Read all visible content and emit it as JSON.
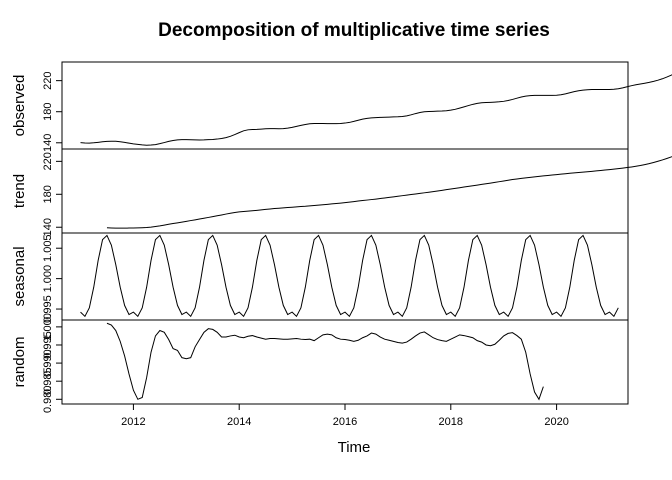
{
  "chart_data": {
    "type": "line",
    "title": "Decomposition of multiplicative time series",
    "xlabel": "Time",
    "xlim": [
      2010.65,
      2021.35
    ],
    "x_ticks": [
      "2012",
      "2014",
      "2016",
      "2018",
      "2020"
    ],
    "x_tick_values": [
      2012,
      2014,
      2016,
      2018,
      2020
    ],
    "start": 2011.0,
    "frequency": 12,
    "panels": [
      {
        "name": "observed",
        "ylabel": "observed",
        "ylim": [
          132,
          244
        ],
        "ticks": [
          "140",
          "180",
          "220"
        ],
        "tick_values": [
          140,
          180,
          220
        ],
        "values": [
          140.2,
          139.7,
          139.6,
          140.0,
          140.6,
          141.3,
          141.8,
          142.0,
          141.9,
          141.4,
          140.5,
          139.5,
          138.6,
          137.9,
          137.3,
          136.9,
          137.1,
          137.7,
          138.9,
          140.3,
          141.8,
          143.0,
          143.7,
          144.0,
          144.0,
          143.9,
          143.7,
          143.6,
          143.7,
          144.0,
          144.3,
          144.8,
          145.5,
          146.6,
          148.3,
          150.6,
          153.1,
          155.4,
          156.7,
          157.1,
          157.2,
          157.6,
          158.1,
          158.3,
          158.2,
          158.1,
          158.2,
          158.8,
          159.8,
          161.1,
          162.4,
          163.6,
          164.5,
          164.9,
          164.9,
          164.8,
          164.7,
          164.6,
          164.7,
          164.9,
          165.4,
          166.2,
          167.5,
          169.0,
          170.4,
          171.4,
          172.0,
          172.4,
          172.7,
          172.9,
          173.1,
          173.3,
          173.5,
          173.9,
          174.7,
          176.0,
          177.6,
          179.0,
          179.9,
          180.3,
          180.5,
          180.7,
          180.9,
          181.3,
          182.0,
          183.1,
          184.6,
          186.2,
          187.9,
          189.5,
          190.7,
          191.5,
          191.9,
          192.1,
          192.4,
          192.8,
          193.4,
          194.4,
          195.8,
          197.4,
          199.0,
          200.1,
          200.7,
          201.0,
          201.1,
          201.1,
          201.0,
          201.0,
          201.2,
          201.8,
          203.0,
          204.4,
          205.8,
          207.0,
          207.8,
          208.3,
          208.6,
          208.6,
          208.6,
          208.6,
          208.6,
          208.9,
          209.6,
          210.7,
          212.1,
          213.5,
          214.7,
          215.7,
          216.7,
          217.8,
          219.1,
          220.6,
          222.4,
          224.6,
          227.0,
          229.7,
          232.6,
          235.7,
          239.0,
          242.5
        ]
      },
      {
        "name": "trend",
        "ylabel": "trend",
        "ylim": [
          133,
          235
        ],
        "ticks": [
          "140",
          "180",
          "220"
        ],
        "tick_values": [
          140,
          180,
          220
        ],
        "values": [
          null,
          null,
          null,
          null,
          null,
          null,
          139.3,
          139.1,
          138.9,
          138.9,
          138.9,
          139.0,
          139.1,
          139.2,
          139.4,
          139.7,
          140.2,
          140.9,
          141.7,
          142.6,
          143.6,
          144.5,
          145.3,
          146.2,
          147.1,
          148.1,
          149.0,
          150.0,
          150.9,
          151.9,
          152.9,
          153.9,
          154.9,
          156.0,
          157.0,
          157.9,
          158.6,
          159.1,
          159.6,
          160.0,
          160.5,
          161.1,
          161.7,
          162.2,
          162.7,
          163.1,
          163.5,
          163.9,
          164.3,
          164.7,
          165.1,
          165.5,
          166.0,
          166.4,
          166.9,
          167.3,
          167.8,
          168.3,
          168.8,
          169.3,
          169.9,
          170.5,
          171.1,
          171.8,
          172.4,
          173.0,
          173.6,
          174.2,
          174.9,
          175.5,
          176.2,
          176.9,
          177.6,
          178.3,
          179.0,
          179.7,
          180.4,
          181.1,
          181.8,
          182.5,
          183.2,
          184.0,
          184.8,
          185.6,
          186.4,
          187.2,
          188.0,
          188.8,
          189.6,
          190.4,
          191.2,
          192.0,
          192.8,
          193.6,
          194.5,
          195.3,
          196.2,
          197.0,
          197.9,
          198.6,
          199.3,
          199.9,
          200.5,
          201.1,
          201.7,
          202.3,
          202.8,
          203.4,
          203.9,
          204.5,
          205.0,
          205.5,
          206.0,
          206.5,
          206.9,
          207.4,
          207.9,
          208.4,
          208.9,
          209.5,
          210.0,
          210.6,
          211.2,
          211.8,
          212.5,
          213.2,
          214.0,
          214.9,
          216.0,
          217.2,
          218.6,
          220.1,
          221.7,
          223.5,
          225.4,
          227.4,
          229.6,
          null,
          null,
          null,
          null,
          null,
          null
        ]
      },
      {
        "name": "seasonal",
        "ylabel": "seasonal",
        "ylim": [
          0.9932,
          1.0075
        ],
        "ticks": [
          "0.995",
          "1.000",
          "1.005"
        ],
        "tick_values": [
          0.995,
          1.0,
          1.005
        ],
        "values": [
          0.9945,
          0.9938,
          0.9952,
          0.9986,
          1.003,
          1.0064,
          1.0071,
          1.0055,
          1.0023,
          0.9986,
          0.9956,
          0.9941
        ]
      },
      {
        "name": "random",
        "ylabel": "random",
        "ylim": [
          0.9787,
          1.0019
        ],
        "ticks": [
          "0.980",
          "0.985",
          "0.990",
          "0.995",
          "1.000"
        ],
        "tick_values": [
          0.98,
          0.985,
          0.99,
          0.995,
          1.0
        ],
        "values": [
          null,
          null,
          null,
          null,
          null,
          null,
          1.001,
          1.0005,
          0.999,
          0.996,
          0.992,
          0.987,
          0.9825,
          0.98,
          0.9805,
          0.986,
          0.993,
          0.9975,
          0.999,
          0.9985,
          0.9965,
          0.994,
          0.9935,
          0.9915,
          0.9912,
          0.9915,
          0.9945,
          0.9965,
          0.9985,
          0.9995,
          0.9993,
          0.9985,
          0.9972,
          0.9972,
          0.9975,
          0.9977,
          0.9972,
          0.997,
          0.9974,
          0.9976,
          0.9972,
          0.9969,
          0.9966,
          0.9968,
          0.9968,
          0.9967,
          0.9966,
          0.9966,
          0.9967,
          0.9968,
          0.9966,
          0.9965,
          0.9966,
          0.9962,
          0.997,
          0.9978,
          0.998,
          0.9978,
          0.997,
          0.9966,
          0.9965,
          0.9963,
          0.996,
          0.9963,
          0.997,
          0.9975,
          0.9983,
          0.998,
          0.9972,
          0.9966,
          0.9963,
          0.996,
          0.9957,
          0.9955,
          0.9958,
          0.9966,
          0.9975,
          0.9983,
          0.9986,
          0.9978,
          0.997,
          0.9965,
          0.9962,
          0.996,
          0.9966,
          0.9972,
          0.9978,
          0.9976,
          0.9973,
          0.997,
          0.9962,
          0.9958,
          0.995,
          0.9948,
          0.9952,
          0.9963,
          0.9975,
          0.9982,
          0.9984,
          0.9976,
          0.9966,
          0.993,
          0.987,
          0.982,
          0.98,
          0.9835,
          null,
          null,
          null,
          null,
          null,
          null
        ]
      }
    ]
  }
}
